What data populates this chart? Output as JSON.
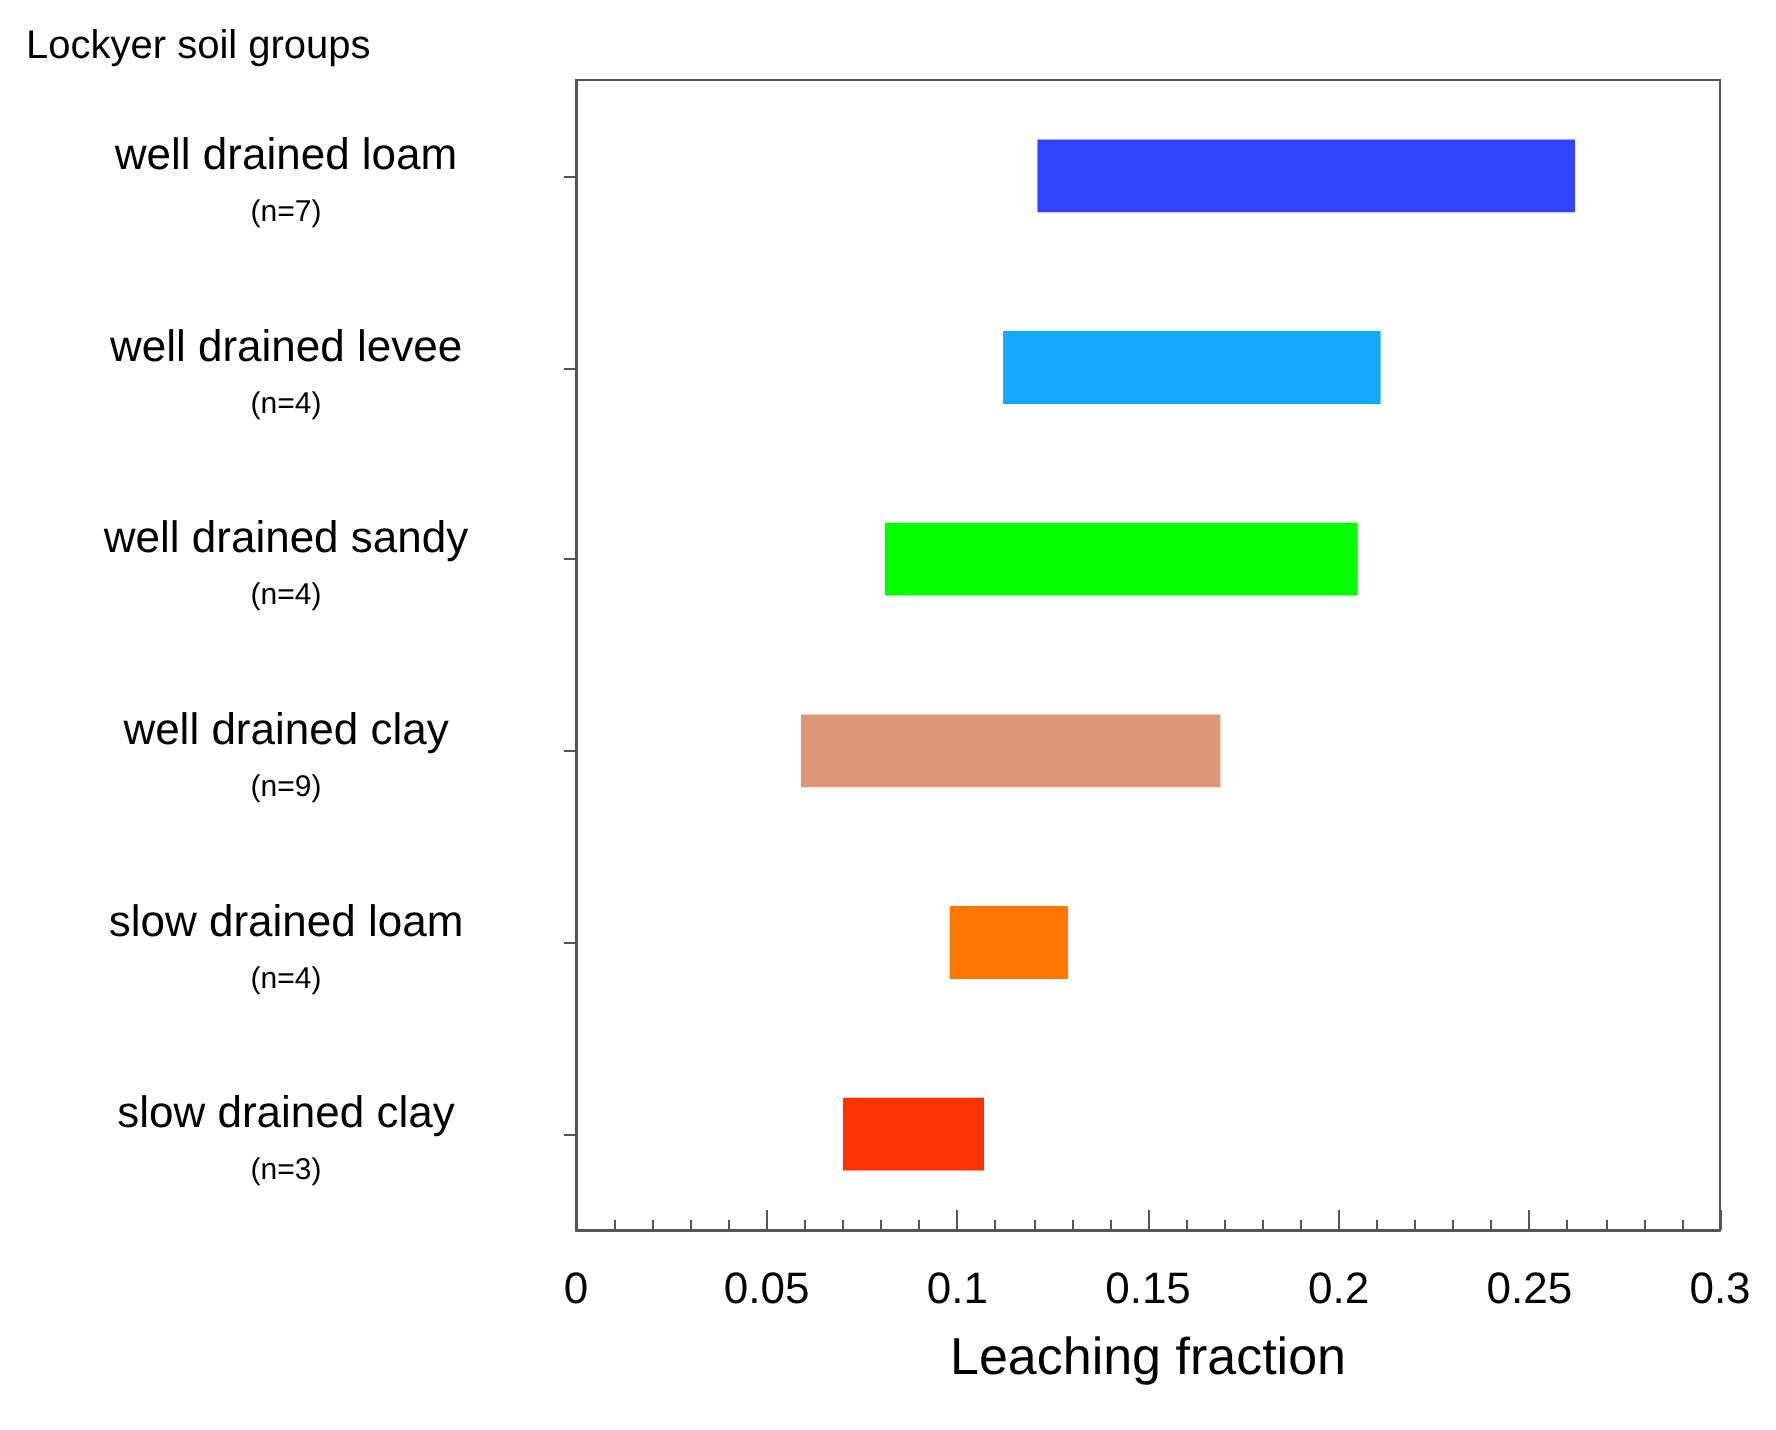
{
  "chart_data": {
    "type": "bar",
    "orientation": "horizontal",
    "title": "Lockyer soil groups",
    "xlabel": "Leaching fraction",
    "categories": [
      "well drained loam\n(n=7)",
      "well drained levee\n(n=4)",
      "well drained sandy\n(n=4)",
      "well drained clay\n(n=9)",
      "slow drained loam\n(n=4)",
      "slow drained clay\n(n=3)"
    ],
    "base": [
      0.121,
      0.112,
      0.081,
      0.059,
      0.098,
      0.07
    ],
    "values": [
      0.141,
      0.099,
      0.124,
      0.11,
      0.031,
      0.037
    ],
    "colors": [
      "#3344ff",
      "#11aaff",
      "#00ff00",
      "#dd9977",
      "#ff7700",
      "#ff3300"
    ],
    "xlim": [
      0,
      0.3
    ],
    "xticks": [
      0,
      0.05,
      0.1,
      0.15,
      0.2,
      0.25,
      0.3
    ],
    "grid": false
  }
}
